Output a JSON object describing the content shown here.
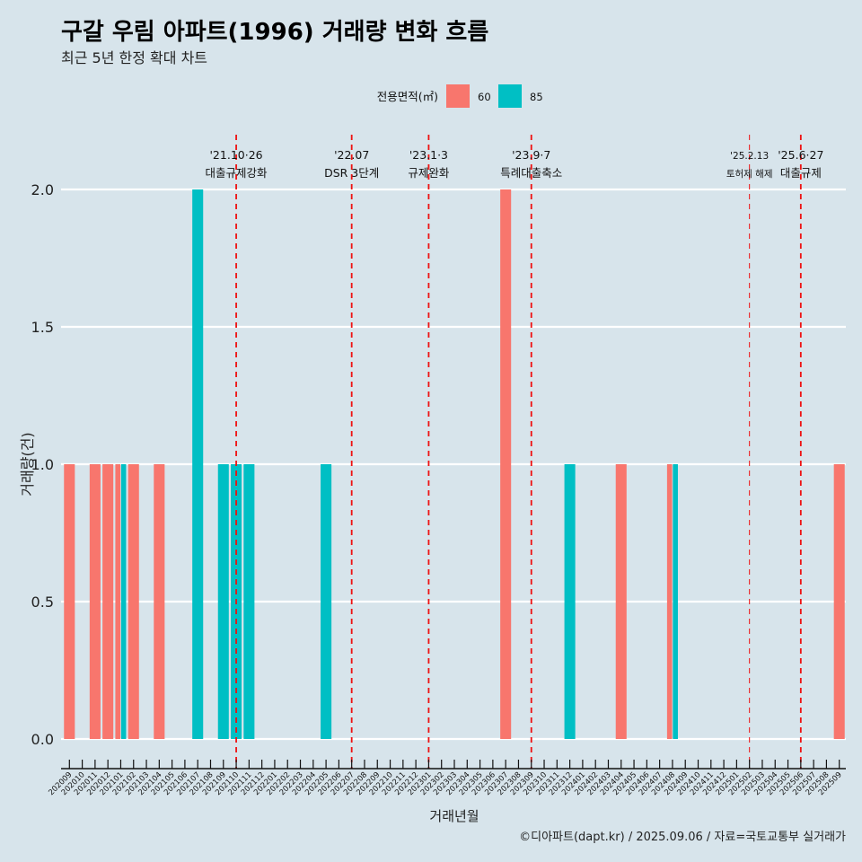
{
  "chart_data": {
    "type": "bar",
    "title": "구갈 우림 아파트(1996) 거래량 변화 흐름",
    "subtitle": "최근 5년 한정 확대 차트",
    "xlabel": "거래년월",
    "ylabel": "거래량(건)",
    "ylim": [
      0,
      2
    ],
    "yticks": [
      "0.0",
      "0.5",
      "1.0",
      "1.5",
      "2.0"
    ],
    "ytick_values": [
      0,
      0.5,
      1,
      1.5,
      2
    ],
    "legend": {
      "title": "전용면적(㎡)",
      "position": "top",
      "entries": [
        {
          "name": "60",
          "color": "#f8766d"
        },
        {
          "name": "85",
          "color": "#00bfc4"
        }
      ]
    },
    "categories": [
      "202009",
      "202010",
      "202011",
      "202012",
      "202101",
      "202102",
      "202103",
      "202104",
      "202105",
      "202106",
      "202107",
      "202108",
      "202109",
      "202110",
      "202111",
      "202112",
      "202201",
      "202202",
      "202203",
      "202204",
      "202205",
      "202206",
      "202207",
      "202208",
      "202209",
      "202210",
      "202211",
      "202212",
      "202301",
      "202302",
      "202303",
      "202304",
      "202305",
      "202306",
      "202307",
      "202308",
      "202309",
      "202310",
      "202311",
      "202312",
      "202401",
      "202402",
      "202403",
      "202404",
      "202405",
      "202406",
      "202407",
      "202408",
      "202409",
      "202410",
      "202411",
      "202412",
      "202501",
      "202502",
      "202503",
      "202504",
      "202505",
      "202506",
      "202507",
      "202508",
      "202509"
    ],
    "bars": [
      {
        "month": "202009",
        "series": "60",
        "value": 1
      },
      {
        "month": "202011",
        "series": "60",
        "value": 1
      },
      {
        "month": "202012",
        "series": "60",
        "value": 1
      },
      {
        "month": "202101",
        "series": "60",
        "value": 1
      },
      {
        "month": "202101",
        "series": "85",
        "value": 1
      },
      {
        "month": "202102",
        "series": "60",
        "value": 1
      },
      {
        "month": "202104",
        "series": "60",
        "value": 1
      },
      {
        "month": "202107",
        "series": "85",
        "value": 2
      },
      {
        "month": "202109",
        "series": "85",
        "value": 1
      },
      {
        "month": "202110",
        "series": "85",
        "value": 1
      },
      {
        "month": "202111",
        "series": "85",
        "value": 1
      },
      {
        "month": "202205",
        "series": "85",
        "value": 1
      },
      {
        "month": "202307",
        "series": "60",
        "value": 2
      },
      {
        "month": "202312",
        "series": "85",
        "value": 1
      },
      {
        "month": "202404",
        "series": "60",
        "value": 1
      },
      {
        "month": "202408",
        "series": "60",
        "value": 1
      },
      {
        "month": "202408",
        "series": "85",
        "value": 1
      },
      {
        "month": "202509",
        "series": "60",
        "value": 1
      }
    ],
    "annotations": [
      {
        "month": "202110",
        "date": "'21.10·26",
        "label": "대출규제강화",
        "thin": false
      },
      {
        "month": "202207",
        "date": "'22.07",
        "label": "DSR 3단계",
        "thin": false
      },
      {
        "month": "202301",
        "date": "'23.1·3",
        "label": "규제완화",
        "thin": false
      },
      {
        "month": "202309",
        "date": "'23.9·7",
        "label": "특례대출축소",
        "thin": false
      },
      {
        "month": "202502",
        "date": "'25.2.13",
        "label": "토허제 해제",
        "thin": true
      },
      {
        "month": "202506",
        "date": "'25.6·27",
        "label": "대출규제",
        "thin": false
      }
    ],
    "caption": "©디아파트(dapt.kr) / 2025.09.06 / 자료=국토교통부 실거래가",
    "grid": true
  }
}
